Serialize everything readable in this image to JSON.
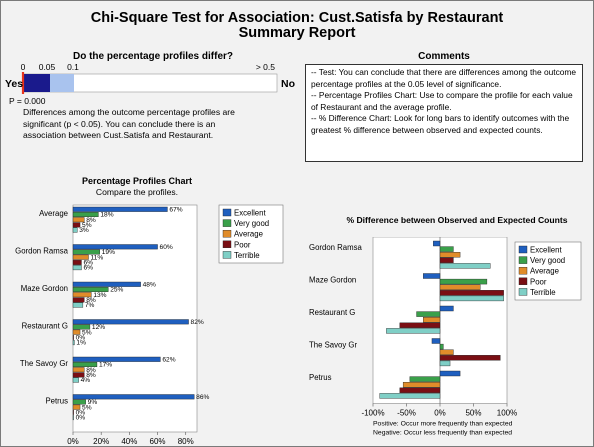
{
  "title_line1": "Chi-Square Test for Association: Cust.Satisfa by Restaurant",
  "title_line2": "Summary Report",
  "pvalue_section": {
    "heading": "Do the percentage profiles differ?",
    "scale_ticks": [
      "0",
      "0.05",
      "0.1",
      "> 0.5"
    ],
    "yes_label": "Yes",
    "no_label": "No",
    "p_value_text": "P = 0.000",
    "p_value": 0.0,
    "conclusion": "Differences among the outcome percentage profiles are significant (p < 0.05). You can conclude there is an association between Cust.Satisfa and Restaurant."
  },
  "comments": {
    "heading": "Comments",
    "lines": [
      "-- Test: You can conclude that there are differences among the outcome percentage profiles at the 0.05 level of significance.",
      "-- Percentage Profiles Chart: Use to compare the profile for each value of Restaurant and the average profile.",
      "-- % Difference Chart: Look for long bars to identify outcomes with the greatest % difference between observed and expected counts."
    ]
  },
  "colors": {
    "Excellent": "#1f5fbf",
    "Very good": "#3aa04a",
    "Average": "#e08c2a",
    "Poor": "#7a0f14",
    "Terrible": "#7fcfc6",
    "gauge_dark": "#1a1a8c",
    "gauge_light": "#a9c3ee",
    "p_marker": "#e8341c"
  },
  "chart_data": [
    {
      "type": "bar",
      "orientation": "horizontal",
      "title": "Percentage Profiles Chart",
      "subtitle": "Compare the profiles.",
      "categories": [
        "Average",
        "Gordon Ramsa",
        "Maze Gordon",
        "Restaurant G",
        "The Savoy Gr",
        "Petrus"
      ],
      "series": [
        {
          "name": "Excellent",
          "values": [
            67,
            60,
            48,
            82,
            62,
            86
          ],
          "labels": [
            "67%",
            "60%",
            "48%",
            "82%",
            "62%",
            "86%"
          ]
        },
        {
          "name": "Very good",
          "values": [
            18,
            19,
            25,
            12,
            17,
            9
          ],
          "labels": [
            "18%",
            "19%",
            "25%",
            "12%",
            "17%",
            "9%"
          ]
        },
        {
          "name": "Average",
          "values": [
            8,
            11,
            13,
            5,
            8,
            5
          ],
          "labels": [
            "8%",
            "11%",
            "13%",
            "5%",
            "8%",
            "5%"
          ]
        },
        {
          "name": "Poor",
          "values": [
            5,
            6,
            8,
            0,
            8,
            0
          ],
          "labels": [
            "5%",
            "6%",
            "8%",
            "0%",
            "8%",
            "0%"
          ]
        },
        {
          "name": "Terrible",
          "values": [
            3,
            6,
            7,
            1,
            4,
            0
          ],
          "labels": [
            "3%",
            "6%",
            "7%",
            "1%",
            "4%",
            "0%"
          ]
        }
      ],
      "x_ticks": [
        "0%",
        "20%",
        "40%",
        "60%",
        "80%"
      ],
      "xlim": [
        0,
        88
      ],
      "legend": "right"
    },
    {
      "type": "bar",
      "orientation": "horizontal",
      "title": "% Difference between Observed and Expected Counts",
      "categories": [
        "Gordon Ramsa",
        "Maze Gordon",
        "Restaurant G",
        "The Savoy Gr",
        "Petrus"
      ],
      "series": [
        {
          "name": "Excellent",
          "values": [
            -10,
            -25,
            20,
            -12,
            30
          ]
        },
        {
          "name": "Very good",
          "values": [
            20,
            70,
            -35,
            5,
            -45
          ]
        },
        {
          "name": "Average",
          "values": [
            30,
            60,
            -25,
            20,
            -55
          ]
        },
        {
          "name": "Poor",
          "values": [
            20,
            95,
            -60,
            90,
            -60
          ]
        },
        {
          "name": "Terrible",
          "values": [
            75,
            95,
            -80,
            15,
            -90
          ]
        }
      ],
      "x_ticks": [
        "-100%",
        "-50%",
        "0%",
        "50%",
        "100%"
      ],
      "xlim": [
        -100,
        100
      ],
      "legend": "right",
      "footnote_positive": "Positive: Occur more frequently than expected",
      "footnote_negative": "Negative: Occur less frequently than expected"
    }
  ]
}
